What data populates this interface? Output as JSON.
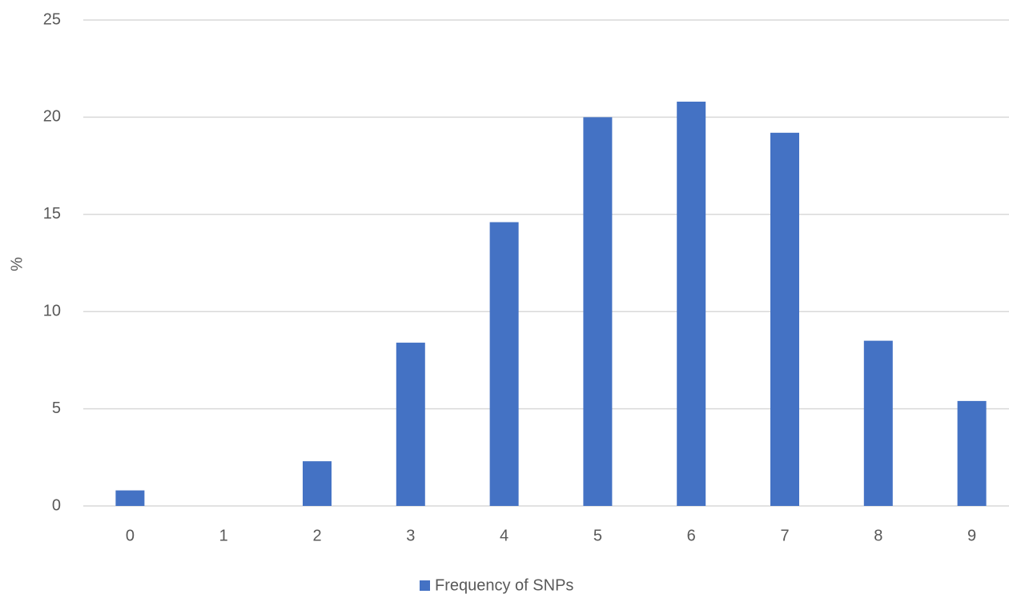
{
  "chart_data": {
    "type": "bar",
    "y_label": "%",
    "categories": [
      "0",
      "1",
      "2",
      "3",
      "4",
      "5",
      "6",
      "7",
      "8",
      "9"
    ],
    "series": [
      {
        "name": "Frequency of SNPs",
        "color": "#4472c4",
        "values": [
          0.8,
          0,
          2.3,
          8.4,
          14.6,
          20.0,
          20.8,
          19.2,
          8.5,
          5.4
        ]
      }
    ],
    "ylim": [
      0,
      25
    ],
    "yticks": [
      0,
      5,
      10,
      15,
      20,
      25
    ],
    "grid": true,
    "legend": "bottom"
  }
}
